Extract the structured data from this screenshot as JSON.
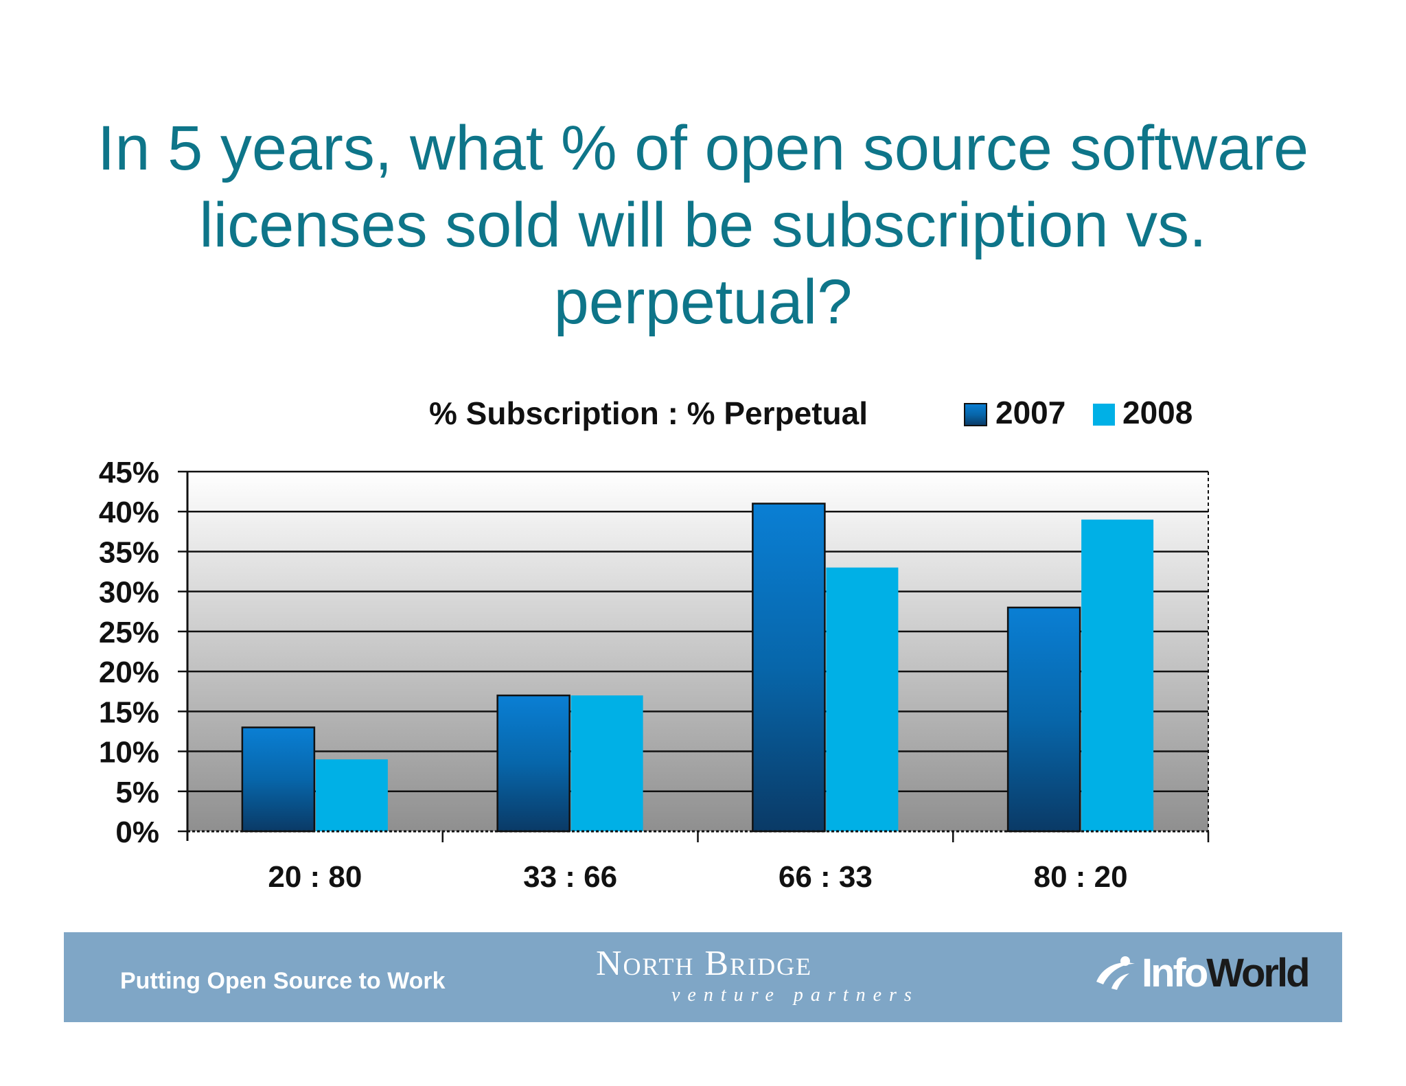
{
  "title_lines": [
    "In 5 years, what % of open source software",
    "licenses sold will be subscription vs.",
    "perpetual?"
  ],
  "colors": {
    "title": "#0e7589",
    "series_2007": "#0a6fc0",
    "series_2008": "#00b0e6",
    "footer": "#7fa6c6"
  },
  "chart_data": {
    "type": "bar",
    "title": "% Subscription : % Perpetual",
    "categories": [
      "20 : 80",
      "33 : 66",
      "66 : 33",
      "80 : 20"
    ],
    "series": [
      {
        "name": "2007",
        "values": [
          13,
          17,
          41,
          28
        ]
      },
      {
        "name": "2008",
        "values": [
          9,
          17,
          33,
          39
        ]
      }
    ],
    "ylim": [
      0,
      45
    ],
    "yticks": [
      "0%",
      "5%",
      "10%",
      "15%",
      "20%",
      "25%",
      "30%",
      "35%",
      "40%",
      "45%"
    ],
    "grid": true,
    "legend_position": "top-right"
  },
  "footer": {
    "tagline": "Putting Open Source to Work",
    "northbridge_name": "North Bridge",
    "northbridge_sub": "venture partners",
    "infoworld_part1": "Info",
    "infoworld_part2": "World",
    "infoworld_icon": "infoworld-swoosh-icon"
  }
}
